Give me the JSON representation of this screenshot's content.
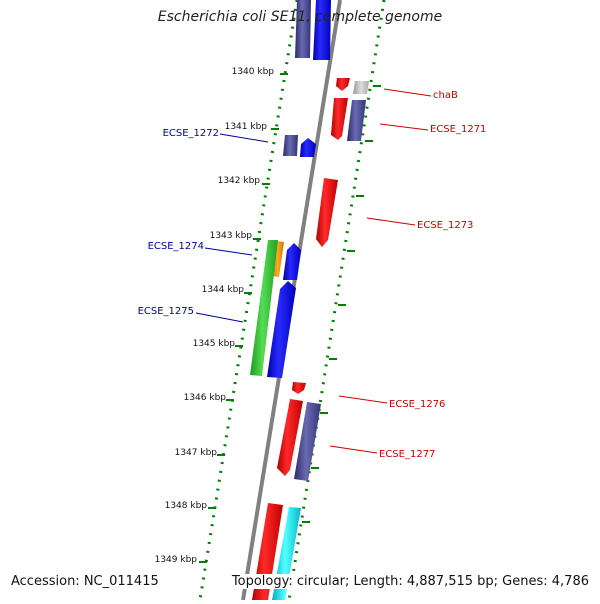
{
  "title": "Escherichia coli SE11, complete genome",
  "accession": "Accession: NC_011415",
  "topology": "Topology: circular; Length: 4,887,515 bp; Genes: 4,786",
  "ticks": [
    "1340 kbp",
    "1341 kbp",
    "1342 kbp",
    "1343 kbp",
    "1344 kbp",
    "1345 kbp",
    "1346 kbp",
    "1347 kbp",
    "1348 kbp",
    "1349 kbp"
  ],
  "left_labels": [
    "ECSE_1272",
    "ECSE_1274",
    "ECSE_1275"
  ],
  "right_labels": [
    "chaB",
    "ECSE_1271",
    "ECSE_1273",
    "ECSE_1276",
    "ECSE_1277"
  ],
  "colors": {
    "red": "#ff0000",
    "blue": "#0000ff",
    "navy": "#3f3f8f",
    "green": "#33cc33",
    "orange": "#ff9900",
    "cyan": "#00e5ee",
    "gray": "#bbbbbb",
    "dot_green": "#008000",
    "label_blue": "#0000a0",
    "label_red": "#cc0000",
    "axis": "#808080"
  }
}
